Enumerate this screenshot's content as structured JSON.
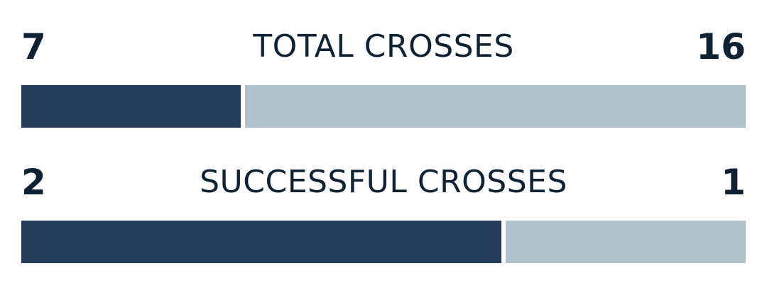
{
  "colors": {
    "home": "#243d59",
    "away": "#b0c1ca",
    "text": "#0f2233"
  },
  "chart_data": [
    {
      "type": "bar",
      "title": "TOTAL CROSSES",
      "series": [
        {
          "values": [
            7
          ]
        },
        {
          "values": [
            16
          ]
        }
      ],
      "home": 7,
      "away": 16
    },
    {
      "type": "bar",
      "title": "SUCCESSFUL CROSSES",
      "series": [
        {
          "values": [
            2
          ]
        },
        {
          "values": [
            1
          ]
        }
      ],
      "home": 2,
      "away": 1
    }
  ]
}
